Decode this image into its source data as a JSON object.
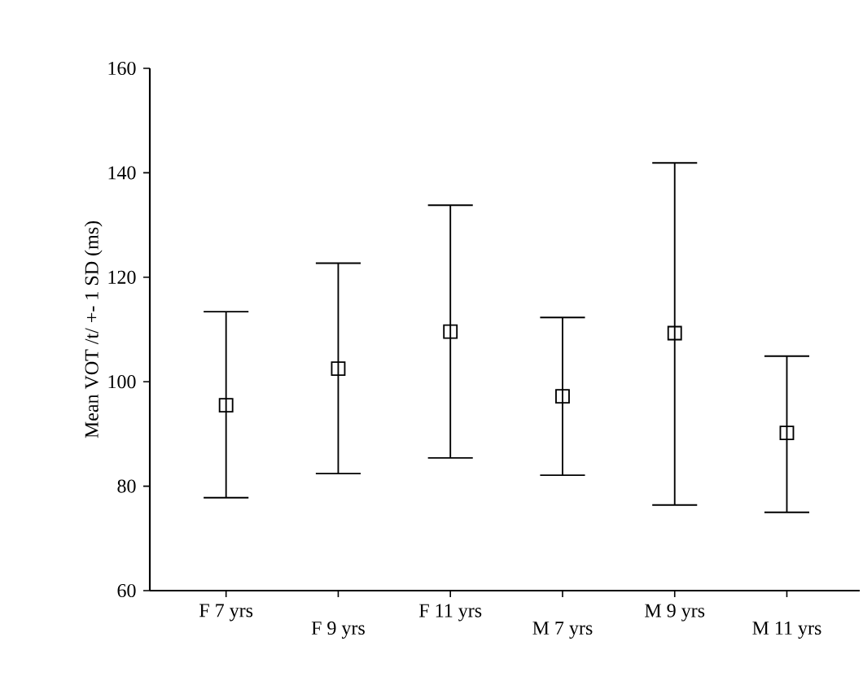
{
  "chart_data": {
    "type": "scatter",
    "ylabel": "Mean VOT /t/ +- 1 SD (ms)",
    "categories": [
      "F 7 yrs",
      "F 9 yrs",
      "F 11 yrs",
      "M 7 yrs",
      "M 9 yrs",
      "M 11 yrs"
    ],
    "values": [
      95.5,
      102.5,
      109.6,
      97.2,
      109.3,
      90.2
    ],
    "errors": [
      [
        77.8,
        113.4
      ],
      [
        82.4,
        122.7
      ],
      [
        85.4,
        133.8
      ],
      [
        82.1,
        112.3
      ],
      [
        76.4,
        141.9
      ],
      [
        75.0,
        104.9
      ]
    ],
    "color": "#000000",
    "marker": "square",
    "ylim": [
      60,
      160
    ],
    "yticks": [
      60,
      80,
      100,
      120,
      140,
      160
    ],
    "grid": false
  }
}
